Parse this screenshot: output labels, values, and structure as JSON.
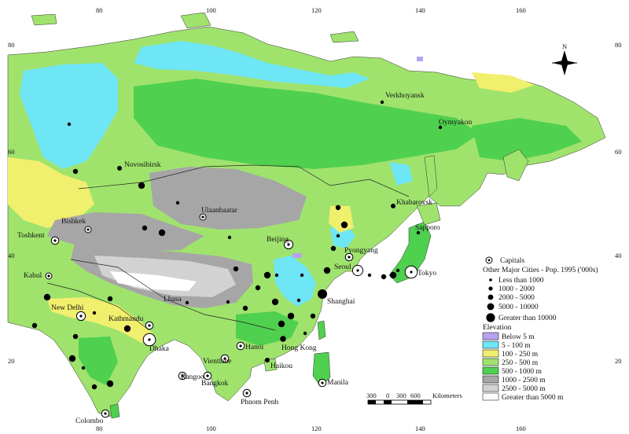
{
  "colors": {
    "ocean": "#ffffff",
    "below_5": "#b6a2f0",
    "m5_100": "#6fe6f6",
    "m100_250": "#f1ef6e",
    "m250_500": "#9fe36d",
    "m500_1000": "#4fd04f",
    "m1000_2500": "#a6a6a6",
    "m2500_5000": "#d2d2d2",
    "above_5000": "#ffffff",
    "city": "#000000"
  },
  "graticule": {
    "top_ticks": [
      "80",
      "100",
      "120",
      "140",
      "160"
    ],
    "bottom_ticks": [
      "80",
      "100",
      "120",
      "140",
      "160"
    ],
    "left_ticks": [
      "80",
      "60",
      "40",
      "20"
    ],
    "right_ticks": [
      "80",
      "60",
      "40",
      "20"
    ]
  },
  "north_arrow": {
    "label": "N"
  },
  "cities": [
    {
      "name": "Verkhoyansk",
      "kind": "city"
    },
    {
      "name": "Oymyakon",
      "kind": "city"
    },
    {
      "name": "Novosibirsk",
      "kind": "city"
    },
    {
      "name": "Khabarovsk",
      "kind": "city"
    },
    {
      "name": "Ulaanbaatar",
      "kind": "capital"
    },
    {
      "name": "Sapporo",
      "kind": "city"
    },
    {
      "name": "Bishkek",
      "kind": "capital"
    },
    {
      "name": "Toshkent",
      "kind": "capital"
    },
    {
      "name": "Beijing",
      "kind": "capital"
    },
    {
      "name": "Pyongyang",
      "kind": "capital"
    },
    {
      "name": "Seoul",
      "kind": "capital"
    },
    {
      "name": "Tokyo",
      "kind": "capital"
    },
    {
      "name": "Kabul",
      "kind": "capital"
    },
    {
      "name": "Shanghai",
      "kind": "city"
    },
    {
      "name": "Lhasa",
      "kind": "city"
    },
    {
      "name": "New Delhi",
      "kind": "capital"
    },
    {
      "name": "Kathmandu",
      "kind": "capital"
    },
    {
      "name": "Dhaka",
      "kind": "capital"
    },
    {
      "name": "Hanoi",
      "kind": "capital"
    },
    {
      "name": "Hong Kong",
      "kind": "city"
    },
    {
      "name": "Vientiane",
      "kind": "capital"
    },
    {
      "name": "Haikou",
      "kind": "city"
    },
    {
      "name": "Rangoon",
      "kind": "capital"
    },
    {
      "name": "Bangkok",
      "kind": "capital"
    },
    {
      "name": "Manila",
      "kind": "capital"
    },
    {
      "name": "Phnom Penh",
      "kind": "capital"
    },
    {
      "name": "Colombo",
      "kind": "capital"
    }
  ],
  "legend": {
    "capitals_label": "Capitals",
    "population_title": "Other Major Cities - Pop. 1995 ('000s)",
    "population_classes": [
      "Less than 1000",
      "1000 - 2000",
      "2000 - 5000",
      "5000 - 10000",
      "Greater than 10000"
    ],
    "elevation_title": "Elevation",
    "elevation_classes": [
      "Below 5 m",
      "5 - 100 m",
      "100 - 250 m",
      "250 - 500 m",
      "500 - 1000 m",
      "1000 - 2500 m",
      "2500 - 5000 m",
      "Greater than 5000 m"
    ]
  },
  "scale_bar": {
    "ticks": [
      "300",
      "0",
      "300",
      "600"
    ],
    "unit": "Kilometers"
  }
}
